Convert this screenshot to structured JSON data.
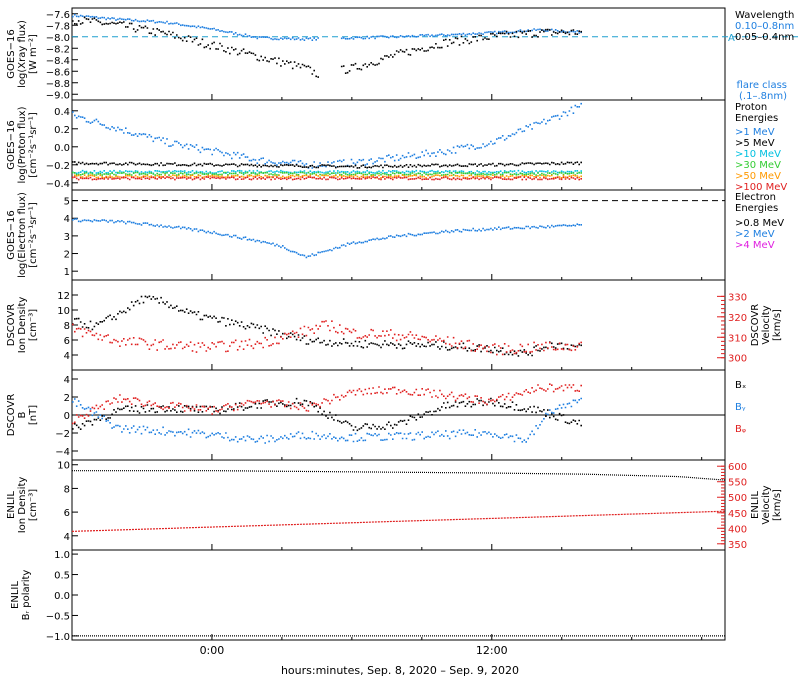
{
  "xaxis": {
    "label": "hours:minutes, Sep.  8, 2020 – Sep.  9, 2020",
    "range": [
      -6,
      22
    ],
    "ticks": [
      {
        "v": 0,
        "label": "0:00"
      },
      {
        "v": 12,
        "label": "12:00"
      }
    ]
  },
  "colors": {
    "black": "#000000",
    "blue": "#1f7fe0",
    "cyan": "#00c0e0",
    "green": "#33cc33",
    "orange": "#ff9900",
    "red": "#e02020",
    "magenta": "#e020e0",
    "dash": "#1f9fcf"
  },
  "chart_data": [
    {
      "type": "scatter",
      "id": "xray",
      "ylabel": [
        "GOES−16",
        "log(Xray flux)",
        "[W m⁻²]"
      ],
      "ylim": [
        -9.1,
        -7.5
      ],
      "yticks": [
        -7.6,
        -7.8,
        -8.0,
        -8.2,
        -8.4,
        -8.6,
        -8.8,
        -9.0
      ],
      "ytick_labels": [
        "−7.6",
        "−7.8",
        "−8.0",
        "−8.2",
        "−8.4",
        "−8.6",
        "−8.8",
        "−9.0"
      ],
      "threshold": {
        "value": -8.0,
        "label": "A"
      },
      "legend_title": "Wavelength",
      "legend": [
        {
          "text": "0.10–0.8nm",
          "color": "blue"
        },
        {
          "text": "0.05–0.4nm",
          "color": "black"
        }
      ],
      "note": [
        "flare class",
        "(.1–.8nm)"
      ],
      "series": [
        {
          "color": "blue",
          "x": [
            -6,
            -4,
            -2,
            0,
            2,
            4,
            4.5,
            5.5,
            6,
            8,
            10,
            12,
            14,
            15.8
          ],
          "y": [
            -7.63,
            -7.7,
            -7.75,
            -7.87,
            -8.02,
            -8.04,
            -8.04,
            -8.03,
            -8.02,
            -8.0,
            -7.97,
            -7.93,
            -7.88,
            -7.92
          ]
        },
        {
          "color": "black",
          "x": [
            -6,
            -4,
            -2,
            0,
            2,
            4,
            4.5,
            6,
            8,
            10,
            12,
            14,
            15.8
          ],
          "y": [
            -7.7,
            -7.8,
            -7.95,
            -8.15,
            -8.35,
            -8.55,
            -8.65,
            -8.55,
            -8.3,
            -8.1,
            -8.0,
            -7.93,
            -7.92
          ]
        }
      ]
    },
    {
      "type": "scatter",
      "id": "proton",
      "ylabel": [
        "GOES−16",
        "log(Proton flux)",
        "[cm⁻²s⁻¹sr⁻¹]"
      ],
      "ylim": [
        -0.48,
        0.52
      ],
      "yticks": [
        0.4,
        0.2,
        0.0,
        -0.2,
        -0.4
      ],
      "ytick_labels": [
        "0.4",
        "0.2",
        "0.0",
        "−0.2",
        "−0.4"
      ],
      "legend_title": "Proton",
      "legend_title2": "Energies",
      "legend": [
        {
          "text": ">1 MeV",
          "color": "blue"
        },
        {
          "text": ">5 MeV",
          "color": "black"
        },
        {
          "text": ">10 MeV",
          "color": "cyan"
        },
        {
          "text": ">30 MeV",
          "color": "green"
        },
        {
          "text": ">50 MeV",
          "color": "orange"
        },
        {
          "text": ">100 MeV",
          "color": "red"
        }
      ],
      "series": [
        {
          "color": "blue",
          "x": [
            -6,
            -4,
            -2,
            0,
            2,
            4,
            6,
            8,
            10,
            12,
            14,
            15.8
          ],
          "y": [
            0.35,
            0.2,
            0.05,
            -0.05,
            -0.15,
            -0.2,
            -0.18,
            -0.12,
            -0.05,
            0.05,
            0.25,
            0.45
          ]
        },
        {
          "color": "black",
          "x": [
            -6,
            0,
            6,
            12,
            15.8
          ],
          "y": [
            -0.18,
            -0.2,
            -0.22,
            -0.2,
            -0.18
          ]
        },
        {
          "color": "cyan",
          "x": [
            -6,
            15.8
          ],
          "y": [
            -0.28,
            -0.28
          ]
        },
        {
          "color": "green",
          "x": [
            -6,
            15.8
          ],
          "y": [
            -0.3,
            -0.3
          ]
        },
        {
          "color": "orange",
          "x": [
            -6,
            15.8
          ],
          "y": [
            -0.33,
            -0.33
          ]
        },
        {
          "color": "red",
          "x": [
            -6,
            15.8
          ],
          "y": [
            -0.35,
            -0.35
          ]
        }
      ]
    },
    {
      "type": "scatter",
      "id": "electron",
      "ylabel": [
        "GOES−16",
        "log(Electron flux)",
        "[cm⁻²s⁻¹sr⁻¹]"
      ],
      "ylim": [
        0.5,
        5.6
      ],
      "yticks": [
        5,
        4,
        3,
        2,
        1
      ],
      "ytick_labels": [
        "5",
        "4",
        "3",
        "2",
        "1"
      ],
      "threshold": {
        "value": 5.0
      },
      "legend_title": "Electron",
      "legend_title2": "Energies",
      "legend": [
        {
          "text": ">0.8 MeV",
          "color": "black"
        },
        {
          "text": ">2 MeV",
          "color": "blue"
        },
        {
          "text": ">4 MeV",
          "color": "magenta"
        }
      ],
      "series": [
        {
          "color": "blue",
          "x": [
            -6,
            -4,
            -2,
            0,
            2,
            3,
            4,
            5,
            6,
            8,
            10,
            12,
            14,
            15.8
          ],
          "y": [
            3.9,
            3.8,
            3.55,
            3.2,
            2.7,
            2.4,
            1.8,
            2.2,
            2.6,
            3.0,
            3.25,
            3.4,
            3.5,
            3.6
          ]
        }
      ]
    },
    {
      "type": "scatter",
      "id": "dscovr-density",
      "ylabel": [
        "DSCOVR",
        "Ion Density",
        "[cm⁻³]"
      ],
      "ylim": [
        2,
        14
      ],
      "yticks": [
        12,
        10,
        8,
        6,
        4
      ],
      "ytick_labels": [
        "12",
        "10",
        "8",
        "6",
        "4"
      ],
      "ylabel2": [
        "DSCOVR",
        "Velocity",
        "[km/s]"
      ],
      "y2lim": [
        294,
        338
      ],
      "y2ticks": [
        330,
        320,
        310,
        300
      ],
      "y2tick_labels": [
        "330",
        "320",
        "310",
        "300"
      ],
      "series": [
        {
          "color": "black",
          "x": [
            -6,
            -5,
            -4,
            -3,
            -2,
            -1,
            0,
            2,
            4,
            6,
            8,
            10,
            12,
            13.5,
            14.5,
            15.8
          ],
          "y": [
            8.5,
            7.8,
            9.5,
            11.5,
            11.0,
            9.5,
            8.8,
            7.5,
            6.0,
            5.5,
            5.4,
            5.2,
            4.8,
            4.2,
            5.5,
            5.0
          ]
        },
        {
          "color": "red",
          "axis": "y2",
          "x": [
            -6,
            -4,
            -2,
            0,
            2,
            4,
            5,
            6,
            8,
            10,
            12,
            14,
            15.8
          ],
          "y": [
            314,
            308,
            306,
            305,
            307,
            313,
            316,
            312,
            311,
            308,
            304,
            305,
            306
          ]
        }
      ]
    },
    {
      "type": "scatter",
      "id": "dscovr-b",
      "ylabel": [
        "DSCOVR",
        "B",
        "[nT]"
      ],
      "ylim": [
        -5,
        5
      ],
      "yticks": [
        4,
        2,
        0,
        -2,
        -4
      ],
      "ytick_labels": [
        "4",
        "2",
        "0",
        "−2",
        "−4"
      ],
      "legend": [
        {
          "text": "Bₓ",
          "color": "black"
        },
        {
          "text": "Bᵧ",
          "color": "blue"
        },
        {
          "text": "Bᵩ",
          "color": "red"
        }
      ],
      "series": [
        {
          "color": "black",
          "x": [
            -6,
            -4,
            -2,
            0,
            2,
            4,
            6,
            8,
            10,
            12,
            14,
            15.8
          ],
          "y": [
            -1.5,
            0.5,
            0.8,
            0.5,
            1.2,
            1.5,
            -1.5,
            -1.0,
            1.0,
            1.5,
            0.5,
            -1.0
          ]
        },
        {
          "color": "blue",
          "x": [
            -6,
            -4,
            -2,
            0,
            2,
            4,
            6,
            8,
            10,
            12,
            13.5,
            14.5,
            15.8
          ],
          "y": [
            1.5,
            -1.5,
            -1.8,
            -2.2,
            -2.8,
            -2.2,
            -2.5,
            -2.4,
            -2.2,
            -2.0,
            -2.8,
            0.5,
            1.5
          ]
        },
        {
          "color": "red",
          "x": [
            -6,
            -4,
            -2,
            0,
            2,
            4,
            6,
            8,
            10,
            12,
            14,
            15.8
          ],
          "y": [
            -0.5,
            1.8,
            1.0,
            0.5,
            1.5,
            0.8,
            2.5,
            2.8,
            2.2,
            1.5,
            3.0,
            3.0
          ]
        }
      ]
    },
    {
      "type": "line",
      "id": "enlil-density",
      "ylabel": [
        "ENLIL",
        "Ion Density",
        "[cm⁻³]"
      ],
      "ylim": [
        2.8,
        10.4
      ],
      "yticks": [
        10,
        8,
        6,
        4
      ],
      "ytick_labels": [
        "10",
        "8",
        "6",
        "4"
      ],
      "ylabel2": [
        "ENLIL",
        "Velocity",
        "[km/s]"
      ],
      "y2lim": [
        330,
        620
      ],
      "y2ticks": [
        600,
        550,
        500,
        450,
        400,
        350
      ],
      "y2tick_labels": [
        "600",
        "550",
        "500",
        "450",
        "400",
        "350"
      ],
      "series": [
        {
          "color": "black",
          "x": [
            -6,
            0,
            6,
            12,
            16,
            20,
            22
          ],
          "y": [
            9.5,
            9.5,
            9.4,
            9.3,
            9.2,
            9.0,
            8.7
          ]
        },
        {
          "color": "red",
          "axis": "y2",
          "x": [
            -6,
            22
          ],
          "y": [
            390,
            455
          ]
        }
      ]
    },
    {
      "type": "line",
      "id": "enlil-polarity",
      "ylabel": [
        "ENLIL",
        "Bᵣ polarity"
      ],
      "ylim": [
        -1.1,
        1.1
      ],
      "yticks": [
        1.0,
        0.5,
        0.0,
        -0.5,
        -1.0
      ],
      "ytick_labels": [
        "1.0",
        "0.5",
        "0.0",
        "−0.5",
        "−1.0"
      ],
      "series": [
        {
          "color": "black",
          "x": [
            -6,
            22
          ],
          "y": [
            -1.0,
            -1.0
          ]
        }
      ]
    }
  ]
}
